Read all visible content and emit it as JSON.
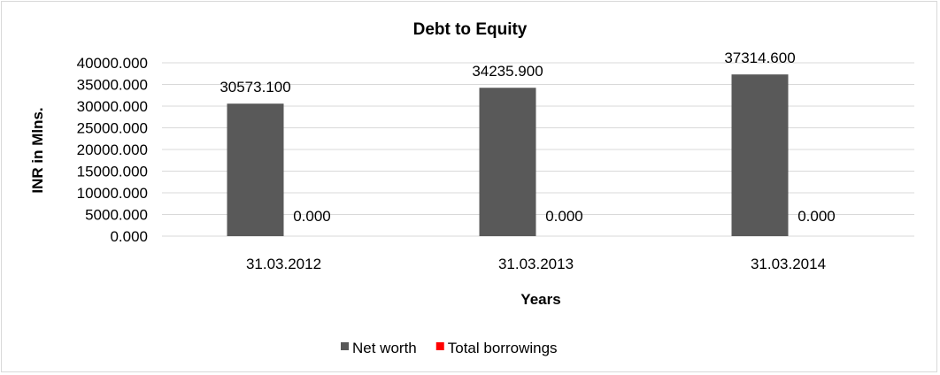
{
  "chart_data": {
    "type": "bar",
    "title": "Debt to Equity",
    "xlabel": "Years",
    "ylabel": "INR in Mlns.",
    "categories": [
      "31.03.2012",
      "31.03.2013",
      "31.03.2014"
    ],
    "series": [
      {
        "name": "Net worth",
        "values": [
          30573.1,
          34235.9,
          37314.6
        ],
        "labels": [
          "30573.100",
          "34235.900",
          "37314.600"
        ],
        "color": "#595959"
      },
      {
        "name": "Total borrowings",
        "values": [
          0,
          0,
          0
        ],
        "labels": [
          "0.000",
          "0.000",
          "0.000"
        ],
        "color": "#ff0000"
      }
    ],
    "ylim": [
      0,
      40000
    ],
    "yticks": [
      "0.000",
      "5000.000",
      "10000.000",
      "15000.000",
      "20000.000",
      "25000.000",
      "30000.000",
      "35000.000",
      "40000.000"
    ],
    "grid": true,
    "legend": "bottom"
  }
}
